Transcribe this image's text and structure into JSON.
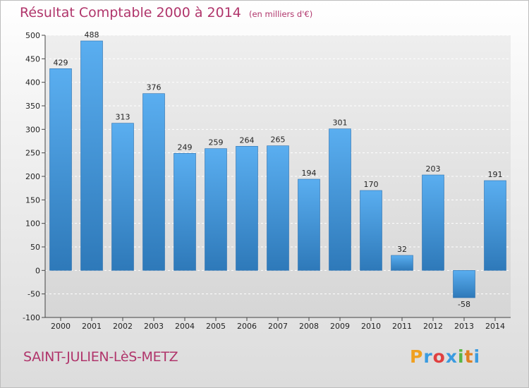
{
  "header": {
    "title": "Résultat Comptable 2000 à 2014",
    "unit": "(en milliers d'€)"
  },
  "commune": "SAINT-JULIEN-LèS-METZ",
  "logo": {
    "letters": [
      "P",
      "r",
      "o",
      "x",
      "i",
      "t",
      "i"
    ],
    "colors": [
      "#f0a020",
      "#3a9be0",
      "#e04040",
      "#3a9be0",
      "#5ab545",
      "#e08020",
      "#3a9be0"
    ]
  },
  "colors": {
    "accent": "#b0356b",
    "bar_light": "#5aaef0",
    "bar_dark": "#2e79b9",
    "grid": "#ffffff"
  },
  "chart_data": {
    "type": "bar",
    "title": "Résultat Comptable 2000 à 2014",
    "ylabel": "(en milliers d'€)",
    "xlabel": "",
    "categories": [
      "2000",
      "2001",
      "2002",
      "2003",
      "2004",
      "2005",
      "2006",
      "2007",
      "2008",
      "2009",
      "2010",
      "2011",
      "2012",
      "2013",
      "2014"
    ],
    "values": [
      429,
      488,
      313,
      376,
      249,
      259,
      264,
      265,
      194,
      301,
      170,
      32,
      203,
      -58,
      191
    ],
    "ylim": [
      -100,
      500
    ],
    "yticks": [
      -100,
      -50,
      0,
      50,
      100,
      150,
      200,
      250,
      300,
      350,
      400,
      450,
      500
    ],
    "grid": true
  }
}
